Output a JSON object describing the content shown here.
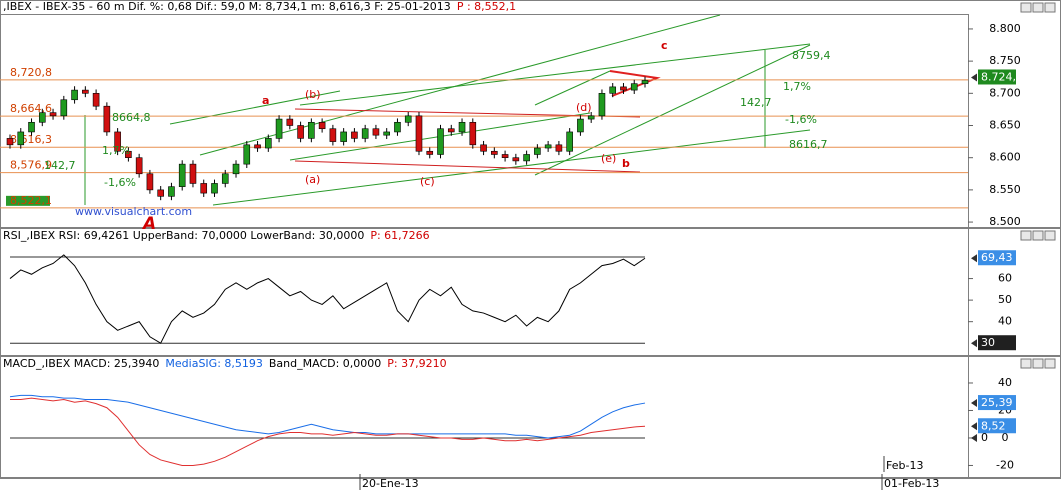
{
  "chart_data": [
    {
      "type": "candlestick",
      "header": [
        {
          "text": ",IBEX - IBEX-35 -  60 m Dif. %: 0,68 Dif.: 59,0 M: 8,734,1 m: 8,616,3 F: 25-01-2013",
          "color": "#000000"
        },
        {
          "text": "P : 8,552,1",
          "color": "#d00000"
        }
      ],
      "open": [
        8.63,
        8.62,
        8.64,
        8.655,
        8.67,
        8.665,
        8.69,
        8.705,
        8.7,
        8.68,
        8.64,
        8.61,
        8.6,
        8.575,
        8.55,
        8.54,
        8.555,
        8.59,
        8.56,
        8.545,
        8.56,
        8.575,
        8.59,
        8.62,
        8.615,
        8.63,
        8.66,
        8.65,
        8.63,
        8.655,
        8.645,
        8.625,
        8.64,
        8.63,
        8.645,
        8.635,
        8.64,
        8.655,
        8.665,
        8.61,
        8.605,
        8.645,
        8.64,
        8.655,
        8.62,
        8.61,
        8.605,
        8.6,
        8.595,
        8.605,
        8.615,
        8.62,
        8.61,
        8.64,
        8.66,
        8.665,
        8.7,
        8.71,
        8.705,
        8.715
      ],
      "high": [
        8.636,
        8.646,
        8.661,
        8.676,
        8.676,
        8.696,
        8.711,
        8.711,
        8.706,
        8.686,
        8.646,
        8.616,
        8.606,
        8.581,
        8.556,
        8.561,
        8.596,
        8.596,
        8.566,
        8.566,
        8.581,
        8.596,
        8.626,
        8.626,
        8.636,
        8.666,
        8.666,
        8.656,
        8.661,
        8.661,
        8.651,
        8.646,
        8.646,
        8.651,
        8.651,
        8.646,
        8.661,
        8.671,
        8.671,
        8.616,
        8.651,
        8.651,
        8.661,
        8.661,
        8.626,
        8.616,
        8.611,
        8.606,
        8.611,
        8.621,
        8.626,
        8.626,
        8.646,
        8.666,
        8.671,
        8.706,
        8.716,
        8.716,
        8.721,
        8.726
      ],
      "low": [
        8.614,
        8.614,
        8.634,
        8.649,
        8.659,
        8.659,
        8.684,
        8.694,
        8.674,
        8.634,
        8.604,
        8.594,
        8.569,
        8.544,
        8.534,
        8.534,
        8.549,
        8.554,
        8.539,
        8.539,
        8.554,
        8.569,
        8.584,
        8.609,
        8.609,
        8.624,
        8.644,
        8.624,
        8.624,
        8.639,
        8.619,
        8.619,
        8.624,
        8.624,
        8.629,
        8.629,
        8.634,
        8.649,
        8.604,
        8.599,
        8.599,
        8.634,
        8.634,
        8.614,
        8.604,
        8.599,
        8.594,
        8.589,
        8.589,
        8.599,
        8.609,
        8.604,
        8.604,
        8.634,
        8.654,
        8.659,
        8.694,
        8.699,
        8.699,
        8.709
      ],
      "close": [
        8.62,
        8.64,
        8.655,
        8.67,
        8.665,
        8.69,
        8.705,
        8.7,
        8.68,
        8.64,
        8.61,
        8.6,
        8.575,
        8.55,
        8.54,
        8.555,
        8.59,
        8.56,
        8.545,
        8.56,
        8.575,
        8.59,
        8.62,
        8.615,
        8.63,
        8.66,
        8.65,
        8.63,
        8.655,
        8.645,
        8.625,
        8.64,
        8.63,
        8.645,
        8.635,
        8.64,
        8.655,
        8.665,
        8.61,
        8.605,
        8.645,
        8.64,
        8.655,
        8.62,
        8.61,
        8.605,
        8.6,
        8.595,
        8.605,
        8.615,
        8.62,
        8.61,
        8.64,
        8.66,
        8.665,
        8.7,
        8.71,
        8.705,
        8.715,
        8.72
      ],
      "up_color": "#1f9a1f",
      "down_color": "#d01010",
      "ylim": [
        8.497,
        8.817
      ],
      "yticks": [
        {
          "value": 8.5,
          "label": "8.500"
        },
        {
          "value": 8.55,
          "label": "8.550"
        },
        {
          "value": 8.6,
          "label": "8.600"
        },
        {
          "value": 8.65,
          "label": "8.650"
        },
        {
          "value": 8.7,
          "label": "8.700"
        },
        {
          "value": 8.75,
          "label": "8.750"
        },
        {
          "value": 8.8,
          "label": "8.800"
        }
      ],
      "levels": [
        {
          "value": 8.7208,
          "label": "8,720,8"
        },
        {
          "value": 8.6646,
          "label": "8,664,6"
        },
        {
          "value": 8.6163,
          "label": "8,616,3"
        },
        {
          "value": 8.5769,
          "label": "8,576,9"
        },
        {
          "value": 8.5221,
          "label": "8,522,1"
        }
      ],
      "end_labels": [
        {
          "value": 8.7246,
          "label": "8.724,6",
          "color": "#1f8a1f"
        }
      ],
      "annotations": [
        {
          "text": "a",
          "color": "#d00000"
        },
        {
          "text": "(b)",
          "color": "#d00000"
        },
        {
          "text": "(a)",
          "color": "#d00000"
        },
        {
          "text": "(c)",
          "color": "#d00000"
        },
        {
          "text": "(d)",
          "color": "#d00000"
        },
        {
          "text": "(e)",
          "color": "#d00000"
        },
        {
          "text": "b",
          "color": "#d00000"
        },
        {
          "text": "c",
          "color": "#d00000"
        },
        {
          "text": "A",
          "color": "#d00000"
        },
        {
          "text": "142,7",
          "color": "#1f8a1f"
        },
        {
          "text": "1,7%",
          "color": "#1f8a1f"
        },
        {
          "text": "-1,6%",
          "color": "#1f8a1f"
        },
        {
          "text": "8664,8",
          "color": "#1f8a1f"
        },
        {
          "text": "142,7",
          "color": "#1f8a1f"
        },
        {
          "text": "1,7%",
          "color": "#1f8a1f"
        },
        {
          "text": "-1,6%",
          "color": "#1f8a1f"
        },
        {
          "text": "8759,4",
          "color": "#1f8a1f"
        },
        {
          "text": "8616,7",
          "color": "#1f8a1f"
        },
        {
          "text": "www.visualchart.com",
          "color": "#3050d0"
        }
      ]
    },
    {
      "type": "line",
      "header": [
        {
          "text": "RSI_,IBEX RSI: 69,4261 UpperBand: 70,0000 LowerBand: 30,0000",
          "color": "#000000"
        },
        {
          "text": "P: 61,7266",
          "color": "#d00000"
        }
      ],
      "series": [
        {
          "color": "#000000",
          "values": [
            60,
            64,
            62,
            65,
            67,
            71,
            66,
            58,
            48,
            40,
            36,
            38,
            40,
            33,
            30,
            40,
            45,
            42,
            44,
            48,
            55,
            58,
            55,
            58,
            60,
            56,
            52,
            54,
            50,
            48,
            52,
            46,
            49,
            52,
            55,
            58,
            45,
            40,
            50,
            55,
            52,
            56,
            48,
            45,
            44,
            42,
            40,
            43,
            38,
            42,
            40,
            45,
            55,
            58,
            62,
            66,
            67,
            69,
            66,
            69.4261
          ]
        }
      ],
      "ylim": [
        25,
        83
      ],
      "yticks": [
        40,
        50,
        60
      ],
      "bands": [
        70,
        30
      ],
      "end_labels": [
        {
          "value": 69.43,
          "label": "69,43",
          "color": "#3a8ee6"
        },
        {
          "value": 30,
          "label": "30",
          "color": "#202020"
        }
      ]
    },
    {
      "type": "line",
      "header": [
        {
          "text": "MACD_,IBEX MACD: 25,3940",
          "color": "#000000"
        },
        {
          "text": "MediaSIG: 8,5193",
          "color": "#1060e0"
        },
        {
          "text": "Band_MACD: 0,0000",
          "color": "#000000"
        },
        {
          "text": "P: 37,9210",
          "color": "#d00000"
        }
      ],
      "series": [
        {
          "color": "#1a6ee8",
          "values": [
            30,
            31,
            31,
            30,
            30,
            29,
            29,
            28,
            28,
            28,
            27,
            26,
            24,
            22,
            20,
            18,
            16,
            14,
            12,
            10,
            8,
            6,
            5,
            4,
            3,
            4,
            6,
            8,
            10,
            8,
            6,
            5,
            4,
            4,
            3,
            3,
            3,
            3,
            3,
            3,
            3,
            3,
            3,
            3,
            3,
            3,
            3,
            2,
            2,
            1,
            0,
            1,
            2,
            5,
            10,
            15,
            19,
            22,
            24,
            25.394
          ]
        },
        {
          "color": "#e03030",
          "values": [
            28,
            28,
            29,
            28,
            27,
            28,
            26,
            27,
            25,
            22,
            15,
            5,
            -5,
            -12,
            -16,
            -18,
            -20,
            -20,
            -19,
            -17,
            -14,
            -10,
            -6,
            -2,
            1,
            3,
            4,
            4,
            3,
            3,
            2,
            3,
            4,
            3,
            2,
            2,
            3,
            3,
            2,
            1,
            0,
            0,
            -1,
            -1,
            0,
            -1,
            -2,
            -2,
            -1,
            -2,
            -1,
            0,
            1,
            2,
            4,
            5,
            6,
            7,
            8,
            8.5193
          ]
        }
      ],
      "ylim": [
        -28.4,
        58.9
      ],
      "yticks": [
        40,
        20,
        0,
        -20
      ],
      "bands": [
        0
      ],
      "end_labels": [
        {
          "value": 25.39,
          "label": "25,39",
          "color": "#3a8ee6"
        },
        {
          "value": 8.52,
          "label": "8,52",
          "color": "#3a8ee6"
        },
        {
          "value": 0,
          "label": "0"
        }
      ]
    }
  ],
  "x_axis_labels": [
    "20-Ene-13",
    "Feb-13",
    "01-Feb-13"
  ]
}
